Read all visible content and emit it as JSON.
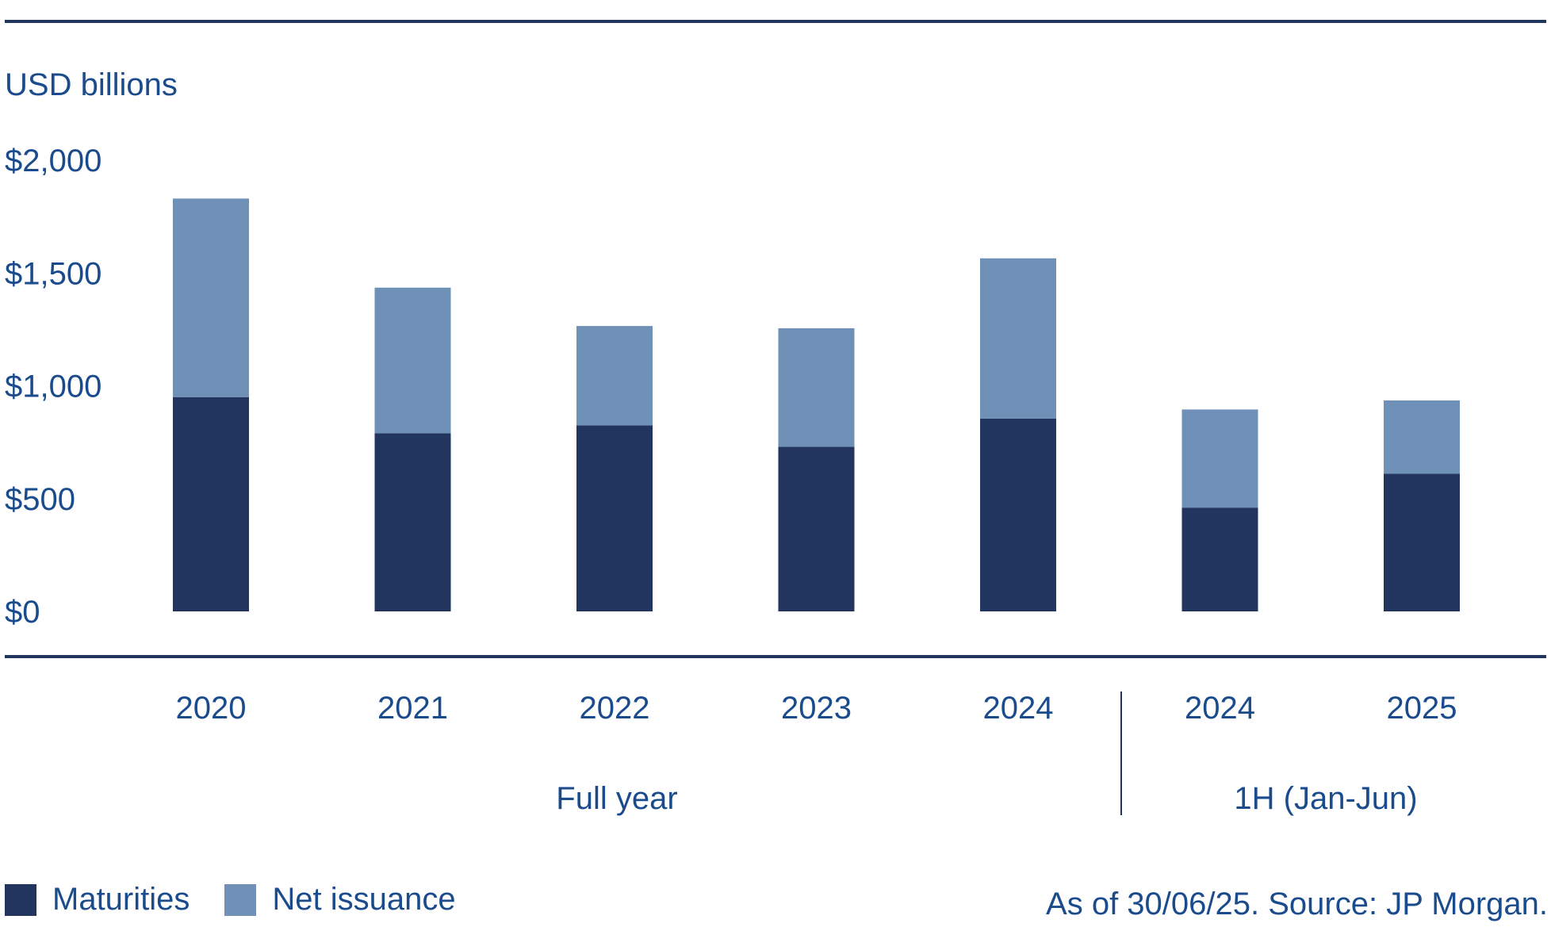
{
  "chart_data": {
    "type": "bar",
    "stacked": true,
    "ylabel": "USD billions",
    "ylim": [
      0,
      2000
    ],
    "yticks": [
      0,
      500,
      1000,
      1500,
      2000
    ],
    "ytick_labels": [
      "$0",
      "$500",
      "$1,000",
      "$1,500",
      "$2,000"
    ],
    "categories": [
      "2020",
      "2021",
      "2022",
      "2023",
      "2024",
      "2024",
      "2025"
    ],
    "groups": [
      {
        "label": "Full year",
        "start": 0,
        "end": 4
      },
      {
        "label": "1H (Jan-Jun)",
        "start": 5,
        "end": 6
      }
    ],
    "series": [
      {
        "name": "Maturities",
        "color": "#22355f",
        "values": [
          950,
          790,
          825,
          730,
          855,
          460,
          610
        ]
      },
      {
        "name": "Net issuance",
        "color": "#6f91b8",
        "values": [
          880,
          645,
          440,
          525,
          710,
          435,
          325
        ]
      }
    ],
    "legend_position": "bottom-left",
    "grid": false
  },
  "source_note": "As of 30/06/25. Source: JP Morgan."
}
